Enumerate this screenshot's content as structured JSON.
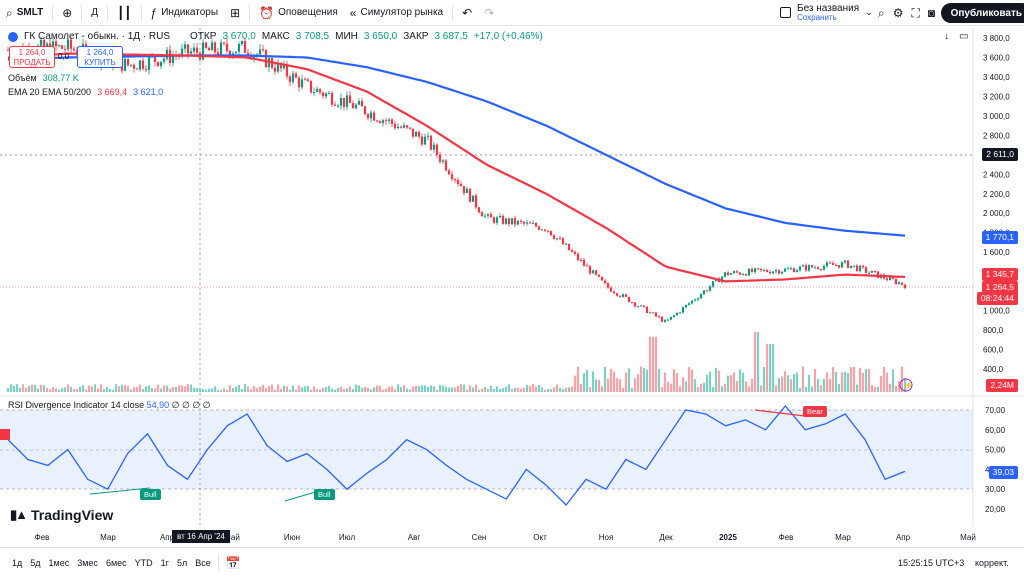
{
  "toolbar": {
    "symbol": "SMLT",
    "interval": "Д",
    "indicators_label": "Индикаторы",
    "alerts_label": "Оповещения",
    "replay_label": "Симулятор рынка",
    "layout_name": "Без названия",
    "layout_status": "Сохранить",
    "publish_label": "Опубликовать"
  },
  "legend": {
    "title": "ГК Самолет - обыкн. · 1Д · RUS",
    "open_label": "ОТКР",
    "open": "3 670,0",
    "high_label": "МАКС",
    "high": "3 708,5",
    "low_label": "МИН",
    "low": "3 650,0",
    "close_label": "ЗАКР",
    "close": "3 687,5",
    "change": "+17,0 (+0,46%)",
    "sell_price": "1 264,0",
    "sell_label": "ПРОДАТЬ",
    "spread": "0,0",
    "buy_price": "1 264,0",
    "buy_label": "КУПИТЬ",
    "volume_label": "Объём",
    "volume": "308,77 K",
    "ema_label": "EMA 20 EMA 50/200",
    "ema1": "3 669,4",
    "ema2": "3 621,0"
  },
  "price_axis": [
    "3 800,0",
    "3 600,0",
    "3 400,0",
    "3 200,0",
    "3 000,0",
    "2 800,0",
    "2 600,0",
    "2 400,0",
    "2 200,0",
    "2 000,0",
    "1 800,0",
    "1 600,0",
    "1 400,0",
    "1 200,0",
    "1 000,0",
    "800,0",
    "600,0",
    "400,0"
  ],
  "badges": {
    "crosshair": "2 611,0",
    "ema200": "1 770,1",
    "ema50": "1 345,7",
    "last": "1 264,5",
    "countdown": "08:24:44",
    "volume": "2,24M"
  },
  "rsi": {
    "title": "RSI Divergence Indicator",
    "params": "14 close",
    "value": "54,90",
    "extra": "∅ ∅ ∅ ∅",
    "axis": [
      "70,00",
      "60,00",
      "50,00",
      "40,00",
      "30,00",
      "20,00"
    ],
    "current": "39,03",
    "bull1": "Bull",
    "bull2": "Bull",
    "bear": "Bear"
  },
  "time_axis": [
    "Фев",
    "Мар",
    "Апр",
    "Май",
    "Июн",
    "Июл",
    "Авг",
    "Сен",
    "Окт",
    "Ноя",
    "Дек",
    "2025",
    "Фев",
    "Мар",
    "Апр",
    "Май"
  ],
  "crosshair_date": "вт 16 Апр '24",
  "logo_text": "TradingView",
  "bottom": {
    "ranges": [
      "1д",
      "5д",
      "1мес",
      "3мес",
      "6мес",
      "YTD",
      "1г",
      "5л",
      "Все"
    ],
    "time": "15:25:15 UTC+3",
    "adjust": "коррект."
  },
  "colors": {
    "up": "#089981",
    "down": "#f23645",
    "ema50": "#f23645",
    "ema200": "#2962ff",
    "rsi": "#2962ff"
  },
  "chart_data": {
    "type": "line",
    "x": [
      "2024-01",
      "2024-02",
      "2024-03",
      "2024-04",
      "2024-05",
      "2024-06",
      "2024-07",
      "2024-08",
      "2024-09",
      "2024-10",
      "2024-11",
      "2024-12",
      "2025-01",
      "2025-02",
      "2025-03",
      "2025-04"
    ],
    "series": [
      {
        "values": [
          3680,
          3700,
          3520,
          3650,
          3700,
          3300,
          3050,
          2750,
          1950,
          1850,
          1250,
          880,
          1380,
          1420,
          1480,
          1264
        ]
      },
      {
        "values": [
          3600,
          3640,
          3630,
          3620,
          3600,
          3480,
          3250,
          2900,
          2500,
          2200,
          1850,
          1450,
          1300,
          1320,
          1370,
          1346
        ]
      },
      {
        "values": [
          3580,
          3600,
          3610,
          3620,
          3620,
          3600,
          3500,
          3350,
          3150,
          2900,
          2600,
          2300,
          2050,
          1900,
          1820,
          1770
        ]
      }
    ],
    "ylim": [
      300,
      3900
    ]
  }
}
